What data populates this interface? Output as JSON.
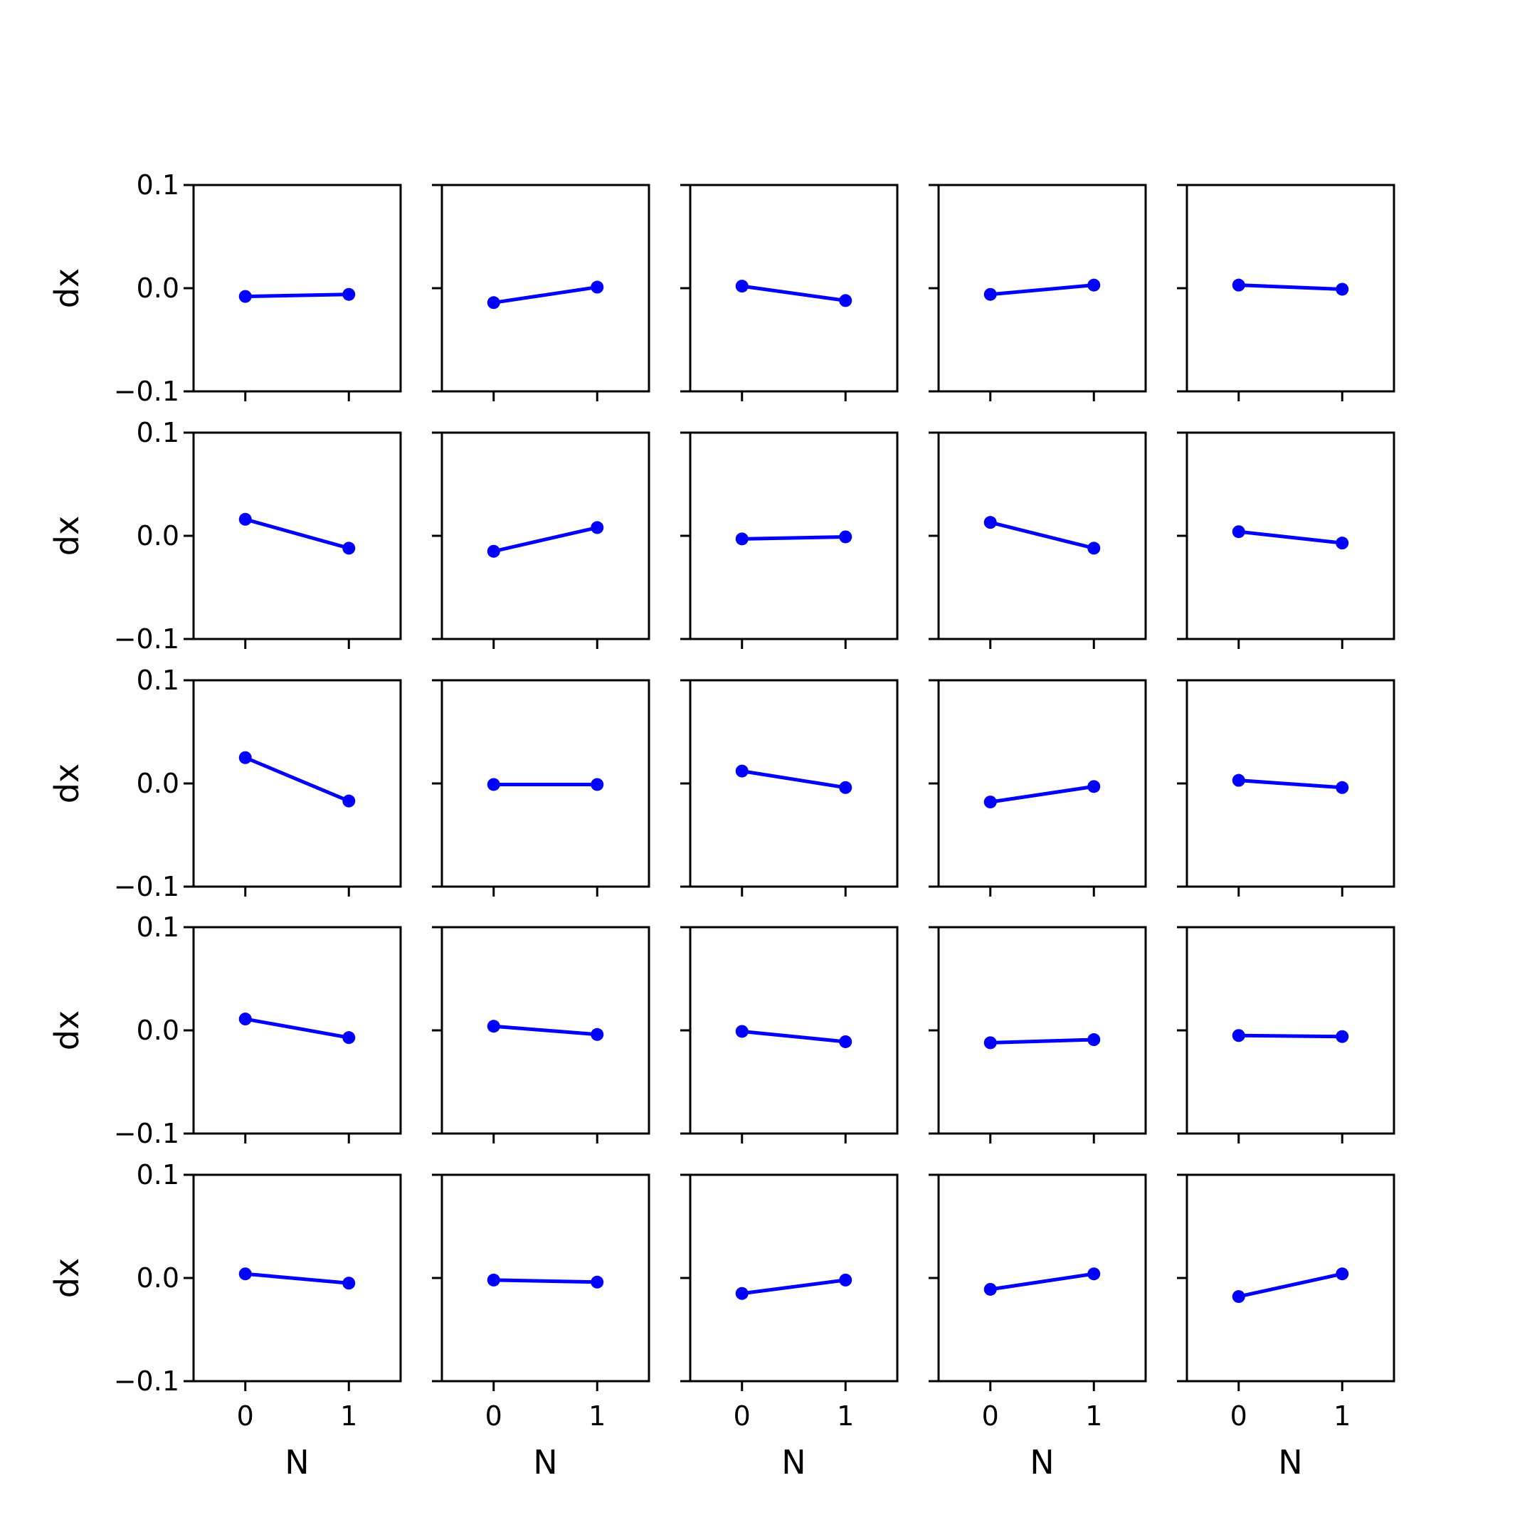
{
  "chart_data": {
    "type": "line",
    "layout": {
      "rows": 5,
      "cols": 5
    },
    "xlabel": "N",
    "ylabel": "dx",
    "x": [
      0,
      1
    ],
    "xlim": [
      -0.5,
      1.5
    ],
    "ylim": [
      -0.1,
      0.1
    ],
    "xticks": [
      0,
      1
    ],
    "xtick_labels": [
      "0",
      "1"
    ],
    "yticks": [
      0.1,
      0.0,
      -0.1
    ],
    "ytick_labels": [
      "0.1",
      "0.0",
      "−0.1"
    ],
    "grid": false,
    "color": "#0000ff",
    "panels": [
      {
        "y": [
          -0.008,
          -0.006
        ]
      },
      {
        "y": [
          -0.014,
          0.001
        ]
      },
      {
        "y": [
          0.002,
          -0.012
        ]
      },
      {
        "y": [
          -0.006,
          0.003
        ]
      },
      {
        "y": [
          0.003,
          -0.001
        ]
      },
      {
        "y": [
          0.016,
          -0.012
        ]
      },
      {
        "y": [
          -0.015,
          0.008
        ]
      },
      {
        "y": [
          -0.003,
          -0.001
        ]
      },
      {
        "y": [
          0.013,
          -0.012
        ]
      },
      {
        "y": [
          0.004,
          -0.007
        ]
      },
      {
        "y": [
          0.025,
          -0.017
        ]
      },
      {
        "y": [
          -0.001,
          -0.001
        ]
      },
      {
        "y": [
          0.012,
          -0.004
        ]
      },
      {
        "y": [
          -0.018,
          -0.003
        ]
      },
      {
        "y": [
          0.003,
          -0.004
        ]
      },
      {
        "y": [
          0.011,
          -0.007
        ]
      },
      {
        "y": [
          0.004,
          -0.004
        ]
      },
      {
        "y": [
          -0.001,
          -0.011
        ]
      },
      {
        "y": [
          -0.012,
          -0.009
        ]
      },
      {
        "y": [
          -0.005,
          -0.006
        ]
      },
      {
        "y": [
          0.004,
          -0.005
        ]
      },
      {
        "y": [
          -0.002,
          -0.004
        ]
      },
      {
        "y": [
          -0.015,
          -0.002
        ]
      },
      {
        "y": [
          -0.011,
          0.004
        ]
      },
      {
        "y": [
          -0.018,
          0.004
        ]
      }
    ]
  }
}
